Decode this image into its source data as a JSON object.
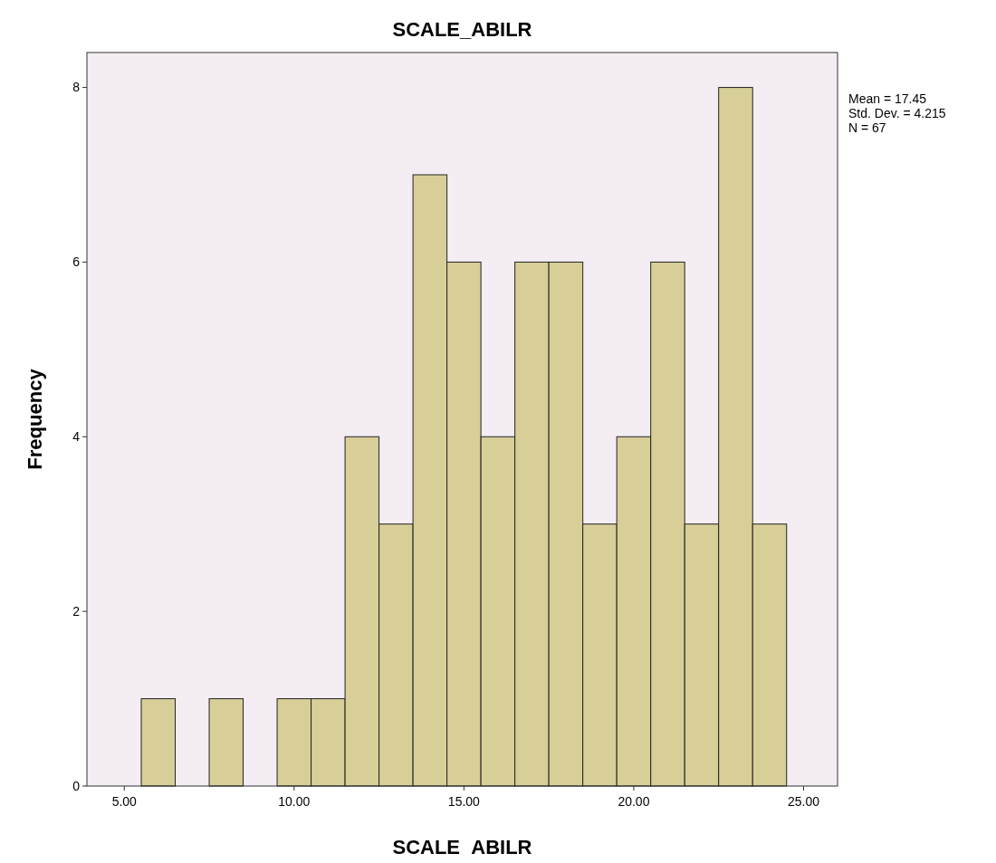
{
  "chart_data": {
    "type": "histogram",
    "title": "SCALE_ABILR",
    "xlabel": "SCALE_ABILR",
    "ylabel": "Frequency",
    "bins": [
      5.5,
      6.5,
      7.5,
      8.5,
      9.5,
      10.5,
      11.5,
      12.5,
      13.5,
      14.5,
      15.5,
      16.5,
      17.5,
      18.5,
      19.5,
      20.5,
      21.5,
      22.5,
      23.5,
      24.5
    ],
    "values": [
      1,
      0,
      1,
      0,
      1,
      1,
      4,
      3,
      7,
      6,
      4,
      6,
      6,
      3,
      4,
      6,
      3,
      8,
      3
    ],
    "color": "#d8cf98",
    "xlim": [
      3.9,
      26
    ],
    "ylim": [
      0,
      8.4
    ],
    "xticks": [
      {
        "value": 5,
        "label": "5.00"
      },
      {
        "value": 10,
        "label": "10.00"
      },
      {
        "value": 15,
        "label": "15.00"
      },
      {
        "value": 20,
        "label": "20.00"
      },
      {
        "value": 25,
        "label": "25.00"
      }
    ],
    "yticks": [
      0,
      2,
      4,
      6,
      8
    ],
    "grid": false,
    "annotations": [
      "Mean = 17.45",
      "Std. Dev. = 4.215",
      "N = 67"
    ]
  }
}
